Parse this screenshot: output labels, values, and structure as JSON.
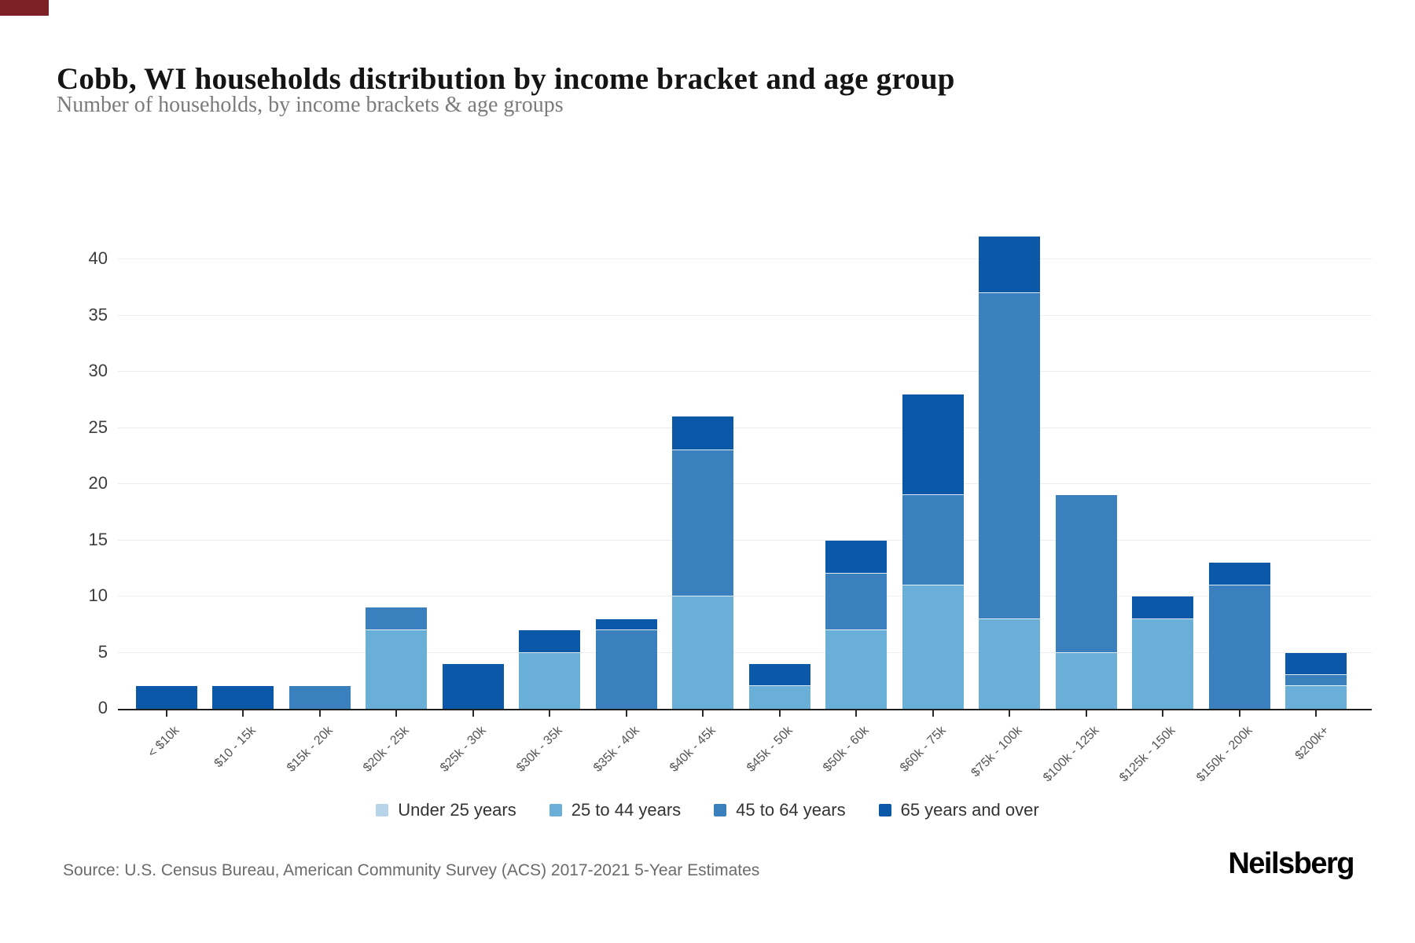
{
  "page": {
    "title": "Cobb, WI households distribution by income bracket and age group",
    "subtitle": "Number of households, by income brackets & age groups",
    "source": "Source: U.S. Census Bureau, American Community Survey (ACS) 2017-2021 5-Year Estimates",
    "logo": "Neilsberg"
  },
  "colors": {
    "axis": "#1f1f1f",
    "gridline": "#ededed",
    "corner_accent": "#7b2125",
    "under_25": "#b7d4e8",
    "age_25_44": "#6aafd8",
    "age_45_64": "#3a80be",
    "age_65_plus": "#0b57a8"
  },
  "chart_data": {
    "type": "bar",
    "stacked": true,
    "title": "Cobb, WI households distribution by income bracket and age group",
    "subtitle": "Number of households, by income brackets & age groups",
    "xlabel": "",
    "ylabel": "",
    "ylim": [
      0,
      45
    ],
    "yticks": [
      0,
      5,
      10,
      15,
      20,
      25,
      30,
      35,
      40
    ],
    "grid": true,
    "legend_position": "bottom",
    "categories": [
      "< $10k",
      "$10 - 15k",
      "$15k - 20k",
      "$20k - 25k",
      "$25k - 30k",
      "$30k - 35k",
      "$35k - 40k",
      "$40k - 45k",
      "$45k - 50k",
      "$50k - 60k",
      "$60k - 75k",
      "$75k - 100k",
      "$100k - 125k",
      "$125k - 150k",
      "$150k - 200k",
      "$200k+"
    ],
    "series": [
      {
        "name": "Under 25 years",
        "color": "#b7d4e8",
        "values": [
          0,
          0,
          0,
          0,
          0,
          0,
          0,
          0,
          0,
          0,
          0,
          0,
          0,
          0,
          0,
          0
        ]
      },
      {
        "name": "25 to 44 years",
        "color": "#6aafd8",
        "values": [
          0,
          0,
          0,
          7,
          0,
          5,
          0,
          10,
          2,
          7,
          11,
          8,
          5,
          8,
          0,
          2
        ]
      },
      {
        "name": "45 to 64 years",
        "color": "#3a80be",
        "values": [
          0,
          0,
          2,
          2,
          0,
          0,
          7,
          13,
          0,
          5,
          8,
          29,
          14,
          0,
          11,
          1
        ]
      },
      {
        "name": "65 years and over",
        "color": "#0b57a8",
        "values": [
          2,
          2,
          0,
          0,
          4,
          2,
          1,
          3,
          2,
          3,
          9,
          5,
          0,
          2,
          2,
          2
        ]
      }
    ],
    "totals": [
      2,
      2,
      2,
      9,
      4,
      7,
      8,
      26,
      4,
      15,
      28,
      42,
      19,
      10,
      13,
      5
    ]
  }
}
